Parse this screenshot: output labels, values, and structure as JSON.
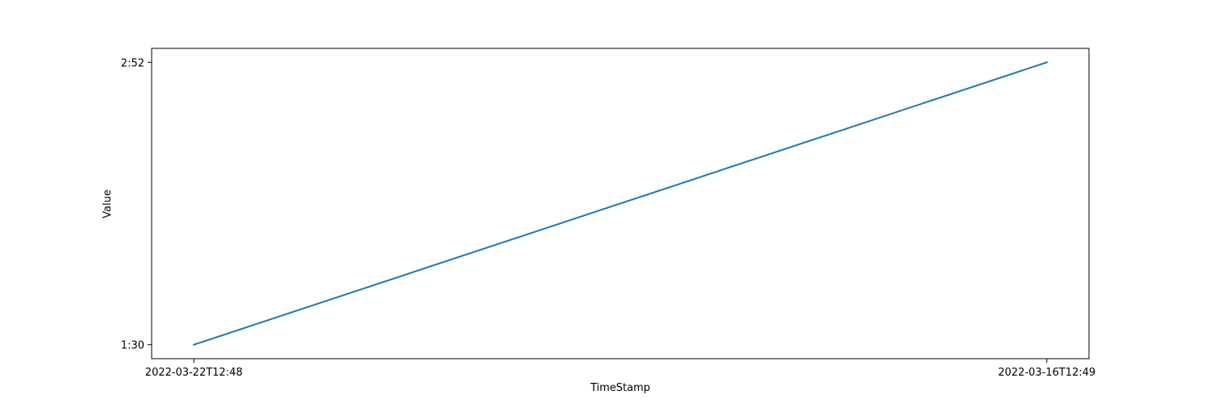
{
  "chart_data": {
    "type": "line",
    "xlabel": "TimeStamp",
    "ylabel": "Value",
    "x_categories": [
      "2022-03-22T12:48",
      "2022-03-16T12:49"
    ],
    "y_categories": [
      "1:30",
      "2:52"
    ],
    "series": [
      {
        "color": "#1f77b4",
        "points": [
          {
            "x": "2022-03-22T12:48",
            "y": "1:30"
          },
          {
            "x": "2022-03-16T12:49",
            "y": "2:52"
          }
        ]
      }
    ],
    "grid": false,
    "legend": false
  }
}
